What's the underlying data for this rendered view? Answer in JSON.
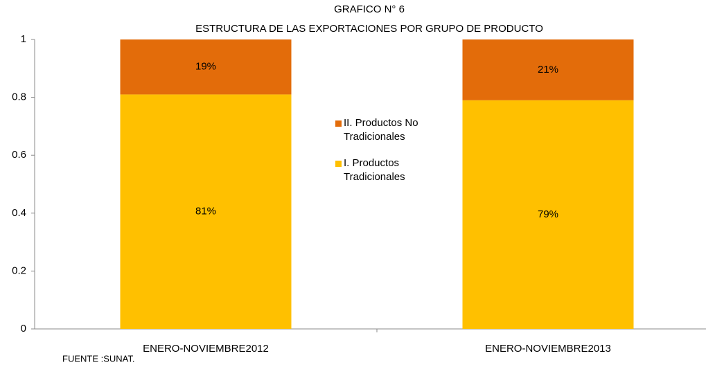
{
  "chart_data": {
    "type": "stacked_bar",
    "title": "GRAFICO N° 6",
    "subtitle": "ESTRUCTURA DE LAS EXPORTACIONES POR GRUPO DE PRODUCTO",
    "source": "FUENTE :SUNAT.",
    "categories": [
      "ENERO-NOVIEMBRE2012",
      "ENERO-NOVIEMBRE2013"
    ],
    "series": [
      {
        "name": "I. Productos Tradicionales",
        "color": "#ffc000",
        "values": [
          0.81,
          0.79
        ],
        "value_labels": [
          "81%",
          "79%"
        ]
      },
      {
        "name": "II. Productos No Tradicionales",
        "color": "#e36c0a",
        "values": [
          0.19,
          0.21
        ],
        "value_labels": [
          "19%",
          "21%"
        ]
      }
    ],
    "ylim": [
      0,
      1
    ],
    "yticks": [
      0,
      0.2,
      0.4,
      0.6,
      0.8,
      1
    ],
    "grid": false
  }
}
